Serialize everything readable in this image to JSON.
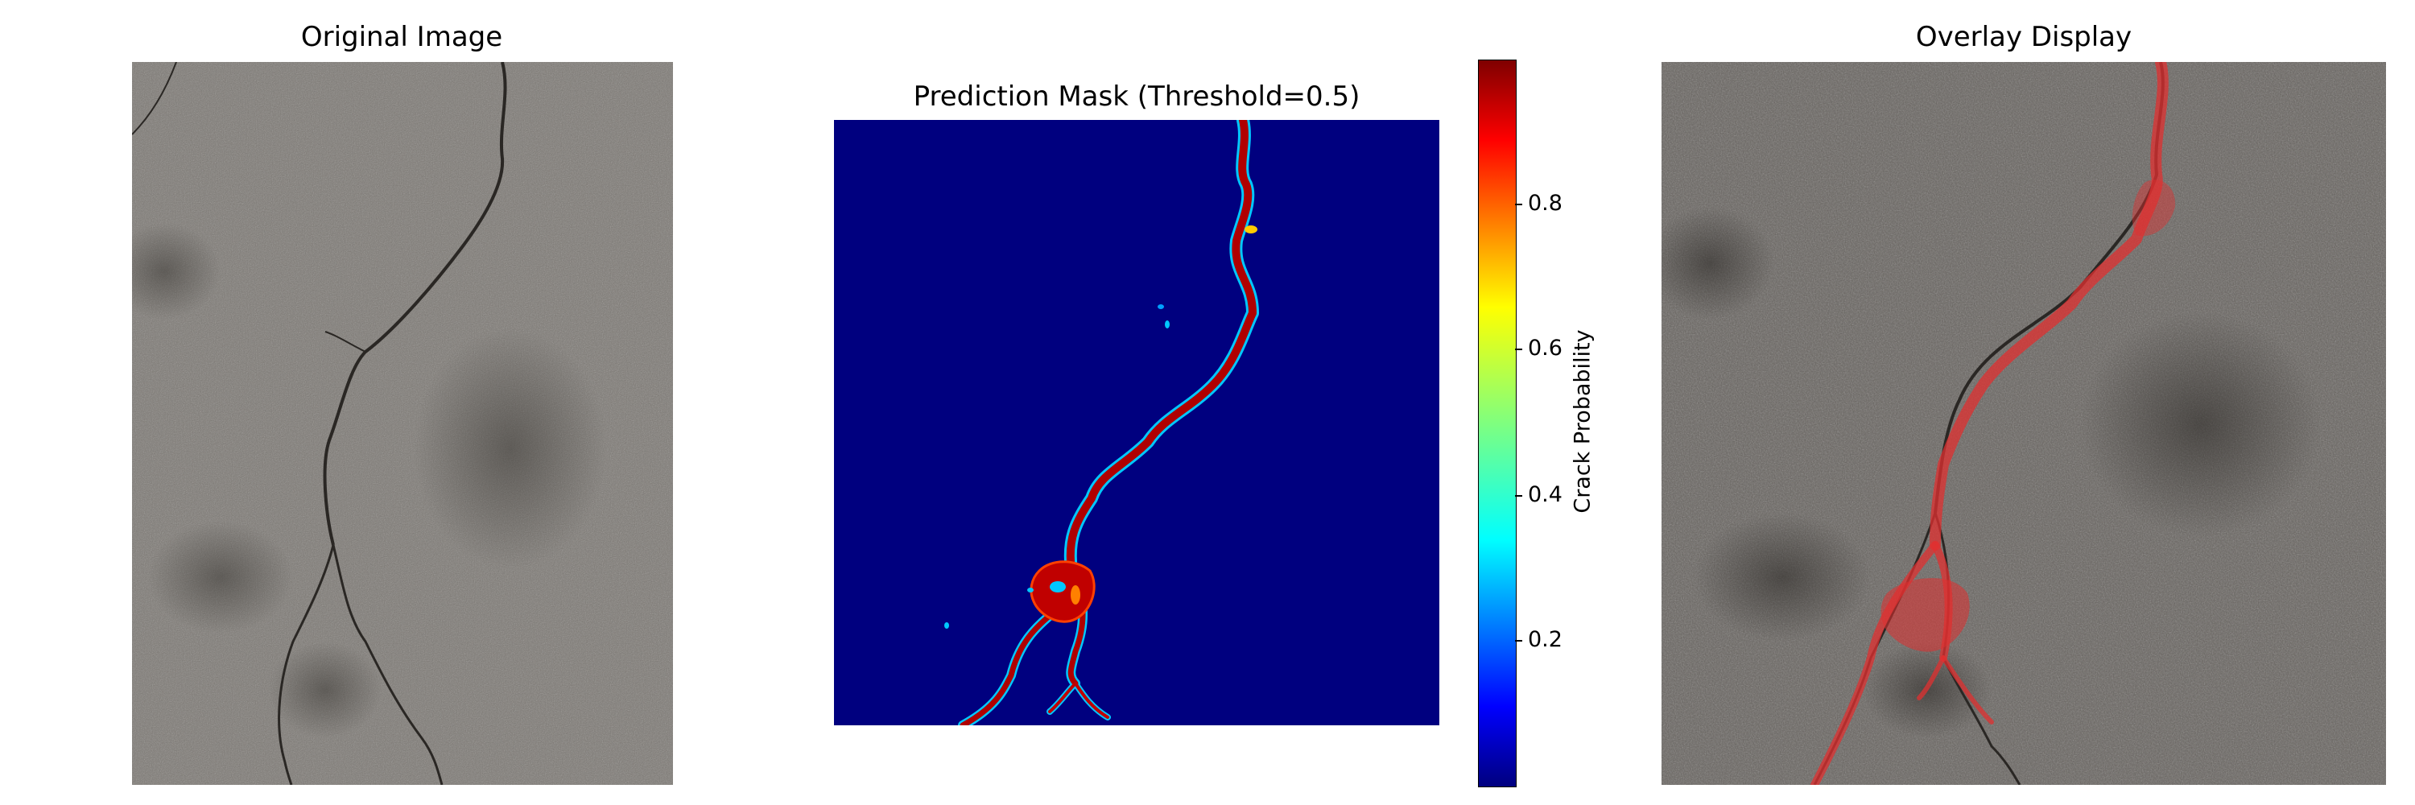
{
  "panels": {
    "original": {
      "title": "Original Image"
    },
    "mask": {
      "title": "Prediction Mask (Threshold=0.5)"
    },
    "overlay": {
      "title": "Overlay Display"
    }
  },
  "colorbar": {
    "label": "Crack Probability",
    "ticks": [
      "0.8",
      "0.6",
      "0.4",
      "0.2"
    ],
    "colormap": "jet",
    "colors": {
      "low": "#00007f",
      "mid": "#00ffff",
      "high": "#7f0000"
    }
  },
  "overlay_color": "#e03030"
}
